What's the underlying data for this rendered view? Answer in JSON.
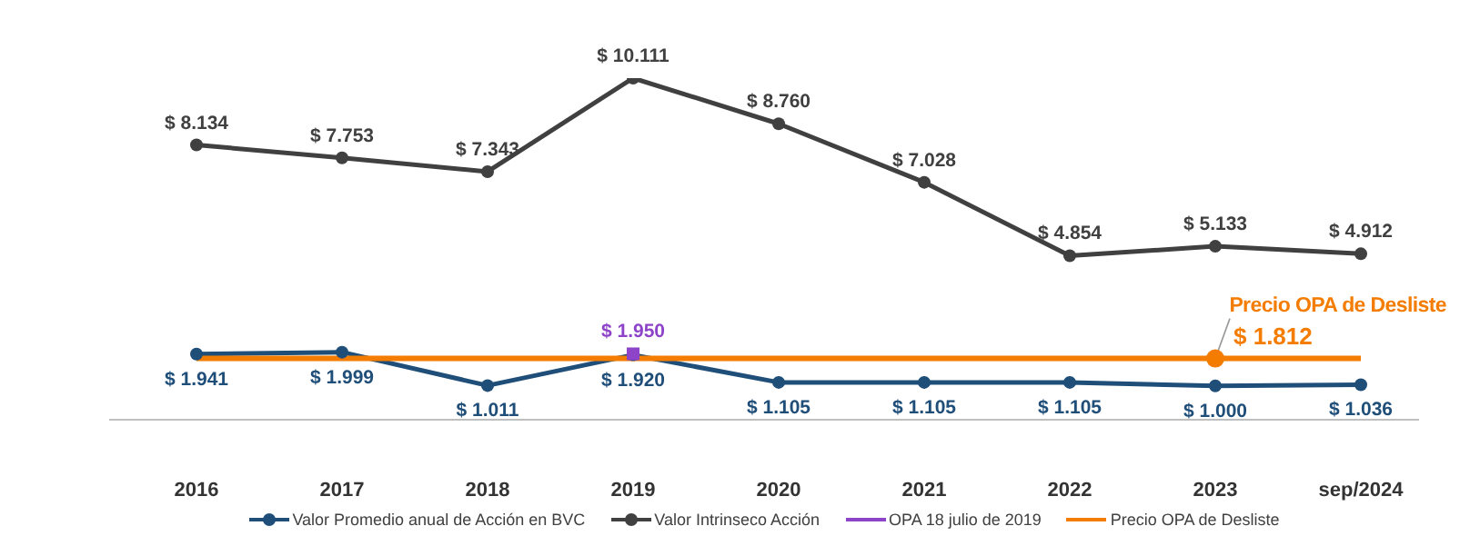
{
  "chart_data": {
    "type": "line",
    "categories": [
      "2016",
      "2017",
      "2018",
      "2019",
      "2020",
      "2021",
      "2022",
      "2023",
      "sep/2024"
    ],
    "tick_labels": "x",
    "grid": false,
    "legend": "bottom",
    "marker": "circle",
    "line_style": "solid",
    "annotations": [
      {
        "text": "Precio OPA de Desliste",
        "x": "2023",
        "y": 1812
      }
    ],
    "series": [
      {
        "name": "Valor Promedio anual de Acción en BVC",
        "color": "#1f4e79",
        "values": [
          1941,
          1999,
          1011,
          1920,
          1105,
          1105,
          1105,
          1000,
          1036
        ],
        "value_labels": [
          "$ 1.941",
          "$ 1.999",
          "$ 1.011",
          "$ 1.920",
          "$ 1.105",
          "$ 1.105",
          "$ 1.105",
          "$ 1.000",
          "$ 1.036"
        ]
      },
      {
        "name": "Valor Intrinseco Acción",
        "color": "#404040",
        "values": [
          8134,
          7753,
          7343,
          10111,
          8760,
          7028,
          4854,
          5133,
          4912
        ],
        "value_labels": [
          "$ 8.134",
          "$ 7.753",
          "$ 7.343",
          "$ 10.111",
          "$ 8.760",
          "$ 7.028",
          "$ 4.854",
          "$ 5.133",
          "$ 4.912"
        ]
      },
      {
        "name": "OPA 18 julio de 2019",
        "color": "#8e44c9",
        "marker": "square",
        "values": [
          null,
          null,
          null,
          1950,
          null,
          null,
          null,
          null,
          null
        ],
        "value_labels": [
          null,
          null,
          null,
          "$ 1.950",
          null,
          null,
          null,
          null,
          null
        ]
      },
      {
        "name": "Precio OPA de Desliste",
        "color": "#f47c00",
        "marker": "none",
        "values": [
          1812,
          1812,
          1812,
          1812,
          1812,
          1812,
          1812,
          1812,
          1812
        ],
        "value_labels": [
          null,
          null,
          null,
          null,
          null,
          null,
          null,
          "$ 1.812",
          null
        ]
      }
    ]
  }
}
